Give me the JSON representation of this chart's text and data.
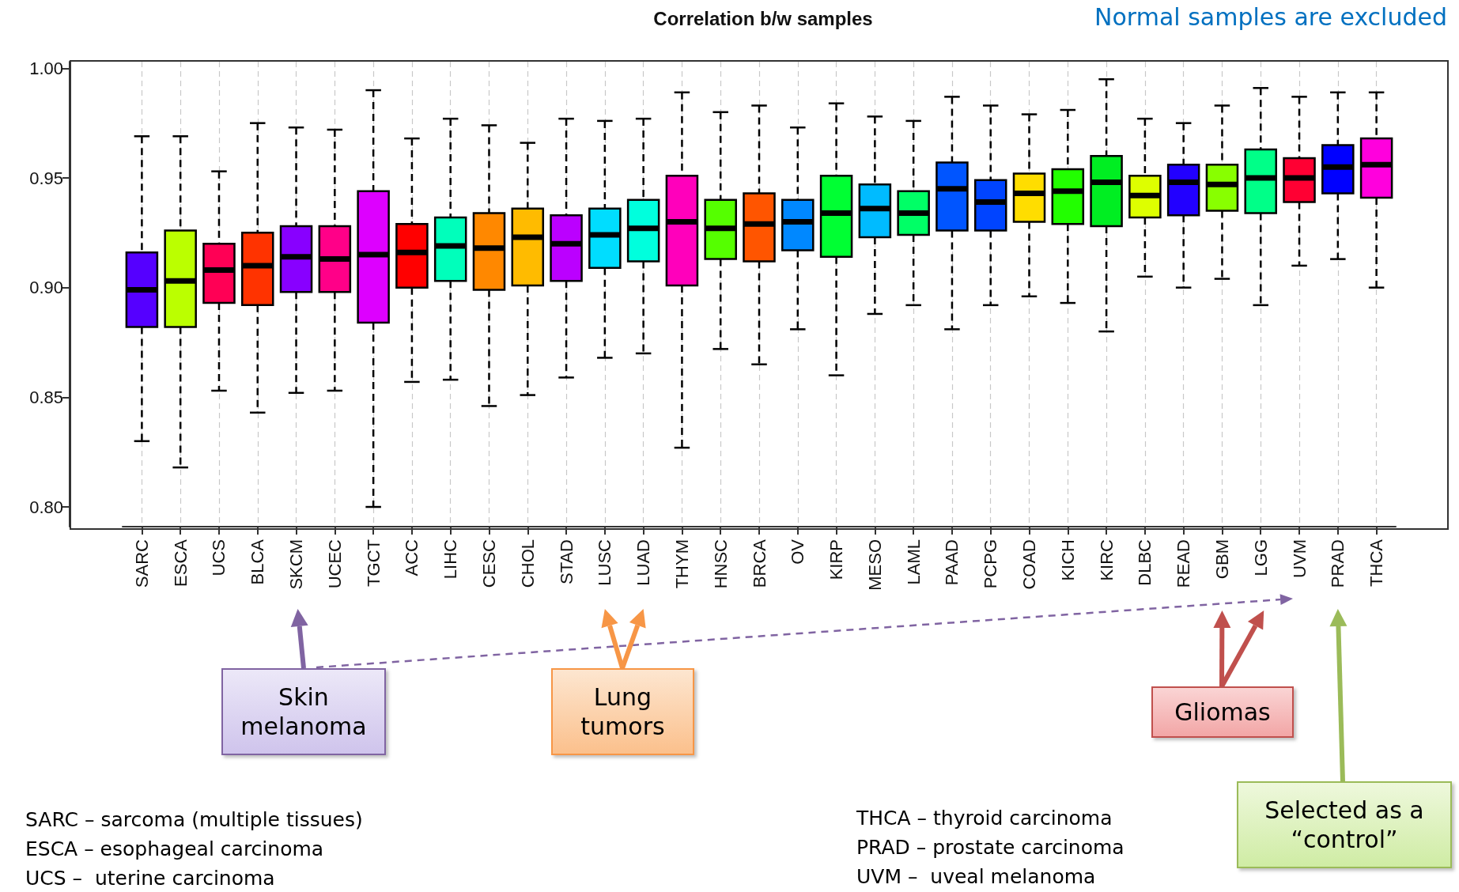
{
  "chart_data": {
    "type": "box",
    "title": "Correlation b/w samples",
    "categories": [
      "SARC",
      "ESCA",
      "UCS",
      "BLCA",
      "SKCM",
      "UCEC",
      "TGCT",
      "ACC",
      "LIHC",
      "CESC",
      "CHOL",
      "STAD",
      "LUSC",
      "LUAD",
      "THYM",
      "HNSC",
      "BRCA",
      "OV",
      "KIRP",
      "MESO",
      "LAML",
      "PAAD",
      "PCPG",
      "COAD",
      "KICH",
      "KIRC",
      "DLBC",
      "READ",
      "GBM",
      "LGG",
      "UVM",
      "PRAD",
      "THCA"
    ],
    "boxes": [
      {
        "low": 0.83,
        "q1": 0.882,
        "median": 0.899,
        "q3": 0.916,
        "high": 0.969
      },
      {
        "low": 0.818,
        "q1": 0.882,
        "median": 0.903,
        "q3": 0.926,
        "high": 0.969
      },
      {
        "low": 0.853,
        "q1": 0.893,
        "median": 0.908,
        "q3": 0.92,
        "high": 0.953
      },
      {
        "low": 0.843,
        "q1": 0.892,
        "median": 0.91,
        "q3": 0.925,
        "high": 0.975
      },
      {
        "low": 0.852,
        "q1": 0.898,
        "median": 0.914,
        "q3": 0.928,
        "high": 0.973
      },
      {
        "low": 0.853,
        "q1": 0.898,
        "median": 0.913,
        "q3": 0.928,
        "high": 0.972
      },
      {
        "low": 0.8,
        "q1": 0.884,
        "median": 0.915,
        "q3": 0.944,
        "high": 0.99
      },
      {
        "low": 0.857,
        "q1": 0.9,
        "median": 0.916,
        "q3": 0.929,
        "high": 0.968
      },
      {
        "low": 0.858,
        "q1": 0.903,
        "median": 0.919,
        "q3": 0.932,
        "high": 0.977
      },
      {
        "low": 0.846,
        "q1": 0.899,
        "median": 0.918,
        "q3": 0.934,
        "high": 0.974
      },
      {
        "low": 0.851,
        "q1": 0.901,
        "median": 0.923,
        "q3": 0.936,
        "high": 0.966
      },
      {
        "low": 0.859,
        "q1": 0.903,
        "median": 0.92,
        "q3": 0.933,
        "high": 0.977
      },
      {
        "low": 0.868,
        "q1": 0.909,
        "median": 0.924,
        "q3": 0.936,
        "high": 0.976
      },
      {
        "low": 0.87,
        "q1": 0.912,
        "median": 0.927,
        "q3": 0.94,
        "high": 0.977
      },
      {
        "low": 0.827,
        "q1": 0.901,
        "median": 0.93,
        "q3": 0.951,
        "high": 0.989
      },
      {
        "low": 0.872,
        "q1": 0.913,
        "median": 0.927,
        "q3": 0.94,
        "high": 0.98
      },
      {
        "low": 0.865,
        "q1": 0.912,
        "median": 0.929,
        "q3": 0.943,
        "high": 0.983
      },
      {
        "low": 0.881,
        "q1": 0.917,
        "median": 0.93,
        "q3": 0.94,
        "high": 0.973
      },
      {
        "low": 0.86,
        "q1": 0.914,
        "median": 0.934,
        "q3": 0.951,
        "high": 0.984
      },
      {
        "low": 0.888,
        "q1": 0.923,
        "median": 0.936,
        "q3": 0.947,
        "high": 0.978
      },
      {
        "low": 0.892,
        "q1": 0.924,
        "median": 0.934,
        "q3": 0.944,
        "high": 0.976
      },
      {
        "low": 0.881,
        "q1": 0.926,
        "median": 0.945,
        "q3": 0.957,
        "high": 0.987
      },
      {
        "low": 0.892,
        "q1": 0.926,
        "median": 0.939,
        "q3": 0.949,
        "high": 0.983
      },
      {
        "low": 0.896,
        "q1": 0.93,
        "median": 0.943,
        "q3": 0.952,
        "high": 0.979
      },
      {
        "low": 0.893,
        "q1": 0.929,
        "median": 0.944,
        "q3": 0.954,
        "high": 0.981
      },
      {
        "low": 0.88,
        "q1": 0.928,
        "median": 0.948,
        "q3": 0.96,
        "high": 0.995
      },
      {
        "low": 0.905,
        "q1": 0.932,
        "median": 0.942,
        "q3": 0.951,
        "high": 0.977
      },
      {
        "low": 0.9,
        "q1": 0.933,
        "median": 0.948,
        "q3": 0.956,
        "high": 0.975
      },
      {
        "low": 0.904,
        "q1": 0.935,
        "median": 0.947,
        "q3": 0.956,
        "high": 0.983
      },
      {
        "low": 0.892,
        "q1": 0.934,
        "median": 0.95,
        "q3": 0.963,
        "high": 0.991
      },
      {
        "low": 0.91,
        "q1": 0.939,
        "median": 0.95,
        "q3": 0.959,
        "high": 0.987
      },
      {
        "low": 0.913,
        "q1": 0.943,
        "median": 0.955,
        "q3": 0.965,
        "high": 0.989
      },
      {
        "low": 0.9,
        "q1": 0.941,
        "median": 0.956,
        "q3": 0.968,
        "high": 0.989
      }
    ],
    "colors": [
      "#5500ff",
      "#bbff00",
      "#ff0055",
      "#ff3300",
      "#8800ff",
      "#ff0088",
      "#dd00ff",
      "#ff0000",
      "#00ffbb",
      "#ff8800",
      "#ffbb00",
      "#bb00ff",
      "#00ddff",
      "#00ffdd",
      "#ff00bb",
      "#55ff00",
      "#ff5500",
      "#0088ff",
      "#00ff33",
      "#00bbff",
      "#00ff66",
      "#0055ff",
      "#0044ff",
      "#ffdd00",
      "#22ff00",
      "#00ee22",
      "#ddff00",
      "#2200ff",
      "#88ff00",
      "#00ff88",
      "#ff0033",
      "#0000ff",
      "#ff00dd"
    ],
    "ylim": [
      0.791,
      1.003
    ],
    "yticks": [
      {
        "value": 0.8,
        "label": "0.80"
      },
      {
        "value": 0.85,
        "label": "0.85"
      },
      {
        "value": 0.9,
        "label": "0.90"
      },
      {
        "value": 0.95,
        "label": "0.95"
      },
      {
        "value": 1.0,
        "label": "1.00"
      }
    ],
    "grid": "x",
    "annotations": [
      "Normal samples are excluded",
      "Skin melanoma",
      "Lung tumors",
      "Gliomas",
      "Selected as a “control”",
      "SARC – sarcoma (multiple tissues)",
      "ESCA – esophageal carcinoma",
      "UCS –  uterine carcinoma",
      "THCA – thyroid carcinoma",
      "PRAD – prostate carcinoma",
      "UVM –  uveal melanoma"
    ]
  }
}
